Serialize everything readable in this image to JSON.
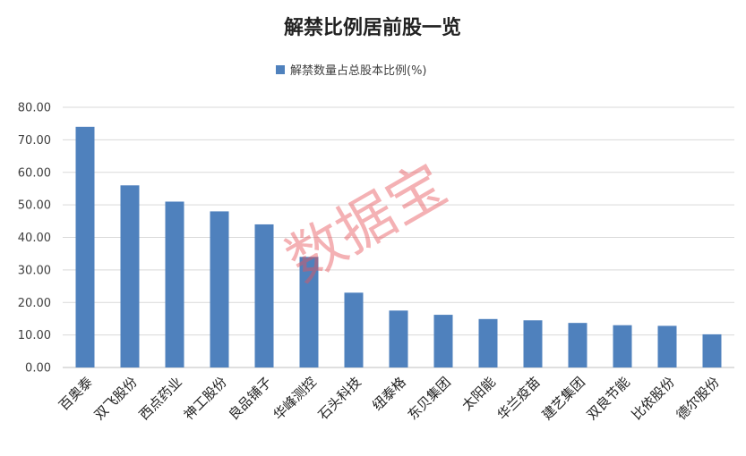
{
  "chart_data": {
    "type": "bar",
    "title": "解禁比例居前股一览",
    "legend": {
      "label": "解禁数量占总股本比例(%)",
      "position": "top"
    },
    "categories": [
      "百奥泰",
      "双飞股份",
      "西点药业",
      "神工股份",
      "良品铺子",
      "华峰测控",
      "石头科技",
      "纽泰格",
      "东贝集团",
      "太阳能",
      "华兰疫苗",
      "建艺集团",
      "双良节能",
      "比依股份",
      "德尔股份"
    ],
    "series": [
      {
        "name": "解禁数量占总股本比例(%)",
        "values": [
          74.0,
          56.0,
          51.0,
          48.0,
          44.0,
          34.0,
          23.0,
          17.5,
          16.2,
          14.9,
          14.5,
          13.7,
          13.0,
          12.8,
          10.2
        ]
      }
    ],
    "ylim": [
      0,
      80
    ],
    "yticks": [
      "0.00",
      "10.00",
      "20.00",
      "30.00",
      "40.00",
      "50.00",
      "60.00",
      "70.00",
      "80.00"
    ],
    "xlabel": "",
    "ylabel": "",
    "bar_color": "#4f81bd",
    "watermark": "数据宝",
    "watermark_color": "#e8545a"
  }
}
